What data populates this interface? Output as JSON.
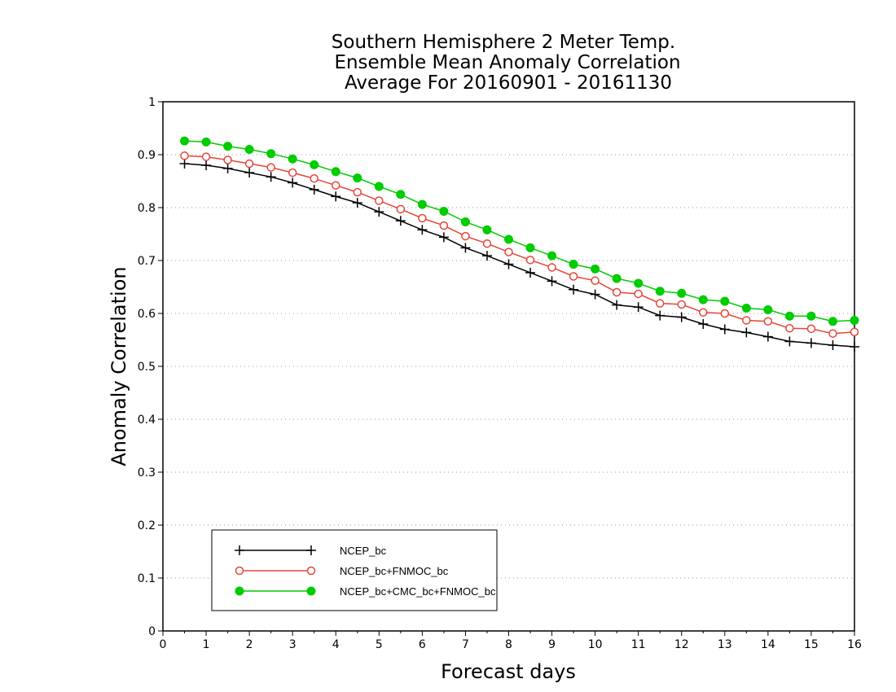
{
  "chart_data": {
    "type": "line",
    "title": [
      "Southern Hemisphere 2 Meter Temp.",
      "Ensemble Mean Anomaly Correlation",
      "Average For 20160901 - 20161130"
    ],
    "xlabel": "Forecast days",
    "ylabel": "Anomaly Correlation",
    "xlim": [
      0,
      16
    ],
    "ylim": [
      0,
      1
    ],
    "x_ticks": [
      "0",
      "1",
      "2",
      "3",
      "4",
      "5",
      "6",
      "7",
      "8",
      "9",
      "10",
      "11",
      "12",
      "13",
      "14",
      "15",
      "16"
    ],
    "y_ticks": [
      "0",
      "0.1",
      "0.2",
      "0.3",
      "0.4",
      "0.5",
      "0.6",
      "0.7",
      "0.8",
      "0.9",
      "1"
    ],
    "grid": "dotted-horizontal",
    "legend_position": "bottom-left",
    "x": [
      0.5,
      1,
      1.5,
      2,
      2.5,
      3,
      3.5,
      4,
      4.5,
      5,
      5.5,
      6,
      6.5,
      7,
      7.5,
      8,
      8.5,
      9,
      9.5,
      10,
      10.5,
      11,
      11.5,
      12,
      12.5,
      13,
      13.5,
      14,
      14.5,
      15,
      15.5,
      16
    ],
    "series": [
      {
        "name": "NCEP_bc",
        "color": "#000000",
        "marker": "plus",
        "values": [
          0.883,
          0.88,
          0.874,
          0.866,
          0.858,
          0.847,
          0.834,
          0.821,
          0.809,
          0.792,
          0.775,
          0.758,
          0.744,
          0.724,
          0.709,
          0.693,
          0.677,
          0.661,
          0.645,
          0.636,
          0.616,
          0.612,
          0.596,
          0.593,
          0.58,
          0.57,
          0.564,
          0.556,
          0.547,
          0.544,
          0.54,
          0.537
        ]
      },
      {
        "name": "NCEP_bc+FNMOC_bc",
        "color": "#e8443a",
        "marker": "open-circle",
        "values": [
          0.898,
          0.896,
          0.89,
          0.883,
          0.876,
          0.866,
          0.855,
          0.842,
          0.829,
          0.813,
          0.797,
          0.78,
          0.766,
          0.746,
          0.732,
          0.716,
          0.701,
          0.687,
          0.67,
          0.662,
          0.64,
          0.637,
          0.619,
          0.617,
          0.602,
          0.6,
          0.587,
          0.585,
          0.572,
          0.571,
          0.562,
          0.565
        ]
      },
      {
        "name": "NCEP_bc+CMC_bc+FNMOC_bc",
        "color": "#00cc00",
        "marker": "filled-circle",
        "values": [
          0.926,
          0.924,
          0.916,
          0.91,
          0.902,
          0.892,
          0.881,
          0.868,
          0.856,
          0.84,
          0.825,
          0.806,
          0.793,
          0.773,
          0.758,
          0.74,
          0.724,
          0.709,
          0.693,
          0.684,
          0.666,
          0.657,
          0.642,
          0.638,
          0.626,
          0.623,
          0.61,
          0.607,
          0.595,
          0.595,
          0.585,
          0.587
        ]
      }
    ]
  }
}
